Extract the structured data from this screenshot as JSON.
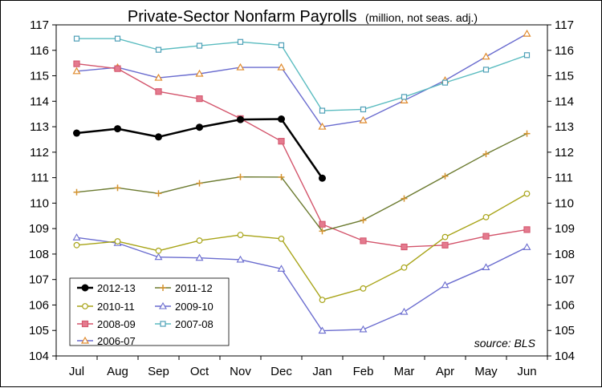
{
  "chart_data": {
    "type": "line",
    "title": "Private-Sector Nonfarm Payrolls",
    "subtitle": "(million, not seas. adj.)",
    "xlabel": "",
    "ylabel": "",
    "ylim": [
      104,
      117
    ],
    "yticks": [
      "104",
      "105",
      "106",
      "107",
      "108",
      "109",
      "110",
      "111",
      "112",
      "113",
      "114",
      "115",
      "116",
      "117"
    ],
    "categories": [
      "Jul",
      "Aug",
      "Sep",
      "Oct",
      "Nov",
      "Dec",
      "Jan",
      "Feb",
      "Mar",
      "Apr",
      "May",
      "Jun"
    ],
    "grid": false,
    "legend_position": "bottom-left",
    "source": "source: BLS",
    "series": [
      {
        "name": "2012-13",
        "color": "#000000",
        "marker": "circle-filled",
        "width": 2.5,
        "values": [
          112.75,
          112.92,
          112.6,
          112.98,
          113.28,
          113.3,
          110.98,
          null,
          null,
          null,
          null,
          null
        ]
      },
      {
        "name": "2011-12",
        "color": "#6b7a2f",
        "marker": "cross",
        "values": [
          110.43,
          110.6,
          110.38,
          110.78,
          111.03,
          111.02,
          108.9,
          109.33,
          110.18,
          111.06,
          111.93,
          112.73
        ]
      },
      {
        "name": "2010-11",
        "color": "#a8a418",
        "marker": "circle-open",
        "values": [
          108.35,
          108.5,
          108.13,
          108.53,
          108.75,
          108.6,
          106.2,
          106.65,
          107.47,
          108.67,
          109.45,
          110.37
        ]
      },
      {
        "name": "2009-10",
        "color": "#6a6ccf",
        "marker": "triangle-open",
        "values": [
          108.65,
          108.43,
          107.88,
          107.85,
          107.78,
          107.42,
          104.99,
          105.04,
          105.73,
          106.78,
          107.48,
          108.27
        ]
      },
      {
        "name": "2008-09",
        "color": "#d3546b",
        "marker": "square-filled",
        "values": [
          115.47,
          115.28,
          114.38,
          114.1,
          113.32,
          112.43,
          109.17,
          108.52,
          108.28,
          108.35,
          108.7,
          108.96
        ]
      },
      {
        "name": "2007-08",
        "color": "#5bbcc0",
        "marker": "square-open",
        "values": [
          116.46,
          116.46,
          116.02,
          116.18,
          116.33,
          116.2,
          113.63,
          113.68,
          114.17,
          114.73,
          115.24,
          115.81
        ]
      },
      {
        "name": "2006-07",
        "color": "#6a6ccf",
        "marker": "triangle-open-orange",
        "values": [
          115.18,
          115.33,
          114.92,
          115.08,
          115.33,
          115.33,
          113.0,
          113.25,
          114.03,
          114.82,
          115.75,
          116.65
        ]
      }
    ]
  }
}
